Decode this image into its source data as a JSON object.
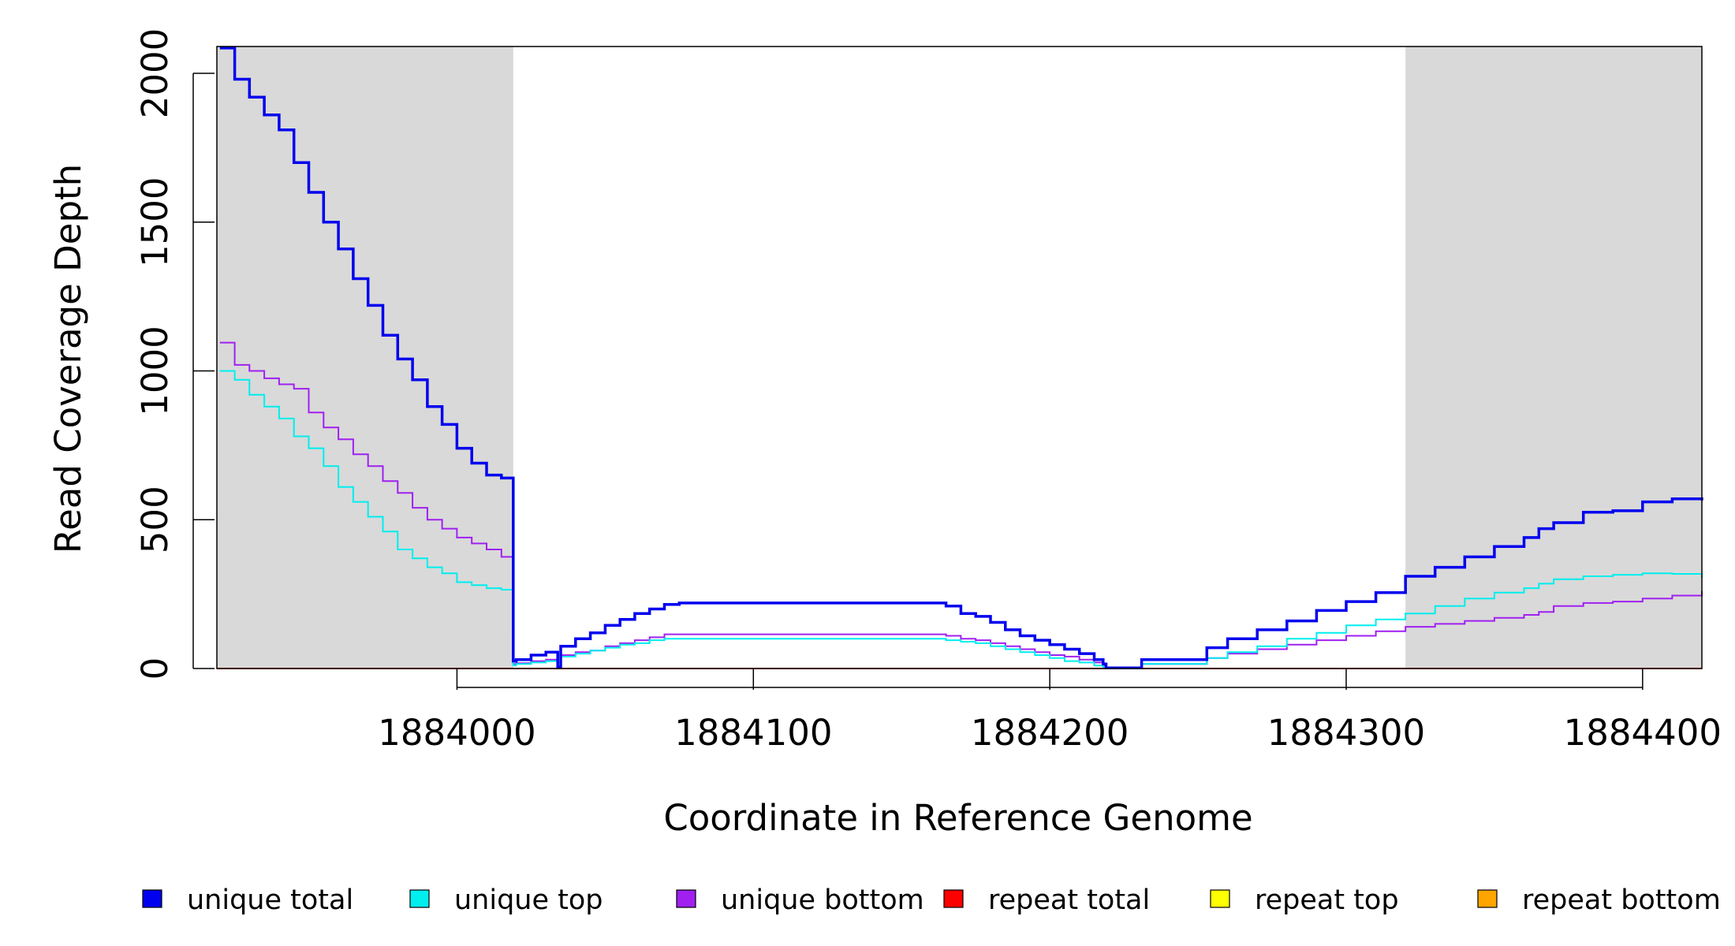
{
  "chart_data": {
    "type": "line",
    "xlabel": "Coordinate in Reference Genome",
    "ylabel": "Read Coverage Depth",
    "xlim": [
      1883919,
      1884420
    ],
    "ylim": [
      0,
      2090
    ],
    "x_ticks": [
      1884000,
      1884100,
      1884200,
      1884300,
      1884400
    ],
    "x_tick_labels": [
      "1884000",
      "1884100",
      "1884200",
      "1884300",
      "1884400"
    ],
    "y_ticks": [
      0,
      500,
      1000,
      1500,
      2000
    ],
    "y_tick_labels": [
      "0",
      "500",
      "1000",
      "1500",
      "2000"
    ],
    "shaded_regions": [
      [
        1883919,
        1884019
      ],
      [
        1884320,
        1884420
      ]
    ],
    "shade_color": "#d9d9d9",
    "grid": false,
    "legend_position": "bottom",
    "series": [
      {
        "name": "unique total",
        "color": "#0000ee",
        "step": true,
        "x": [
          1883920,
          1883925,
          1883930,
          1883935,
          1883940,
          1883945,
          1883950,
          1883955,
          1883960,
          1883965,
          1883970,
          1883975,
          1883980,
          1883985,
          1883990,
          1883995,
          1884000,
          1884005,
          1884010,
          1884015,
          1884018,
          1884019,
          1884020,
          1884025,
          1884030,
          1884034,
          1884035,
          1884040,
          1884045,
          1884050,
          1884055,
          1884060,
          1884065,
          1884070,
          1884075,
          1884080,
          1884100,
          1884120,
          1884140,
          1884160,
          1884165,
          1884170,
          1884175,
          1884180,
          1884185,
          1884190,
          1884195,
          1884200,
          1884205,
          1884210,
          1884215,
          1884218,
          1884219,
          1884225,
          1884230,
          1884231,
          1884240,
          1884252,
          1884253,
          1884260,
          1884270,
          1884280,
          1884290,
          1884300,
          1884310,
          1884320,
          1884330,
          1884340,
          1884350,
          1884360,
          1884365,
          1884370,
          1884380,
          1884390,
          1884400,
          1884410,
          1884420
        ],
        "y": [
          2085,
          1980,
          1920,
          1860,
          1810,
          1700,
          1600,
          1500,
          1410,
          1310,
          1220,
          1120,
          1040,
          970,
          880,
          820,
          740,
          690,
          650,
          640,
          640,
          25,
          30,
          45,
          55,
          5,
          75,
          100,
          120,
          145,
          165,
          185,
          200,
          215,
          220,
          220,
          220,
          220,
          220,
          220,
          210,
          185,
          175,
          155,
          130,
          110,
          95,
          80,
          65,
          50,
          30,
          15,
          2,
          2,
          2,
          30,
          30,
          30,
          70,
          100,
          130,
          160,
          195,
          225,
          255,
          310,
          340,
          375,
          410,
          440,
          470,
          490,
          525,
          530,
          560,
          570,
          565
        ]
      },
      {
        "name": "unique top",
        "color": "#00eeee",
        "step": true,
        "x": [
          1883920,
          1883925,
          1883930,
          1883935,
          1883940,
          1883945,
          1883950,
          1883955,
          1883960,
          1883965,
          1883970,
          1883975,
          1883980,
          1883985,
          1883990,
          1883995,
          1884000,
          1884005,
          1884010,
          1884015,
          1884018,
          1884019,
          1884020,
          1884025,
          1884030,
          1884034,
          1884035,
          1884040,
          1884045,
          1884050,
          1884055,
          1884060,
          1884065,
          1884070,
          1884075,
          1884080,
          1884100,
          1884120,
          1884140,
          1884160,
          1884165,
          1884170,
          1884175,
          1884180,
          1884185,
          1884190,
          1884195,
          1884200,
          1884205,
          1884210,
          1884215,
          1884218,
          1884219,
          1884225,
          1884230,
          1884231,
          1884240,
          1884252,
          1884253,
          1884260,
          1884270,
          1884280,
          1884290,
          1884300,
          1884310,
          1884320,
          1884330,
          1884340,
          1884350,
          1884360,
          1884365,
          1884370,
          1884380,
          1884390,
          1884400,
          1884410,
          1884420
        ],
        "y": [
          1000,
          970,
          920,
          880,
          840,
          780,
          740,
          680,
          610,
          560,
          510,
          460,
          400,
          370,
          340,
          320,
          290,
          280,
          270,
          265,
          265,
          10,
          15,
          20,
          25,
          3,
          40,
          50,
          60,
          70,
          80,
          85,
          95,
          100,
          100,
          100,
          100,
          100,
          100,
          100,
          95,
          90,
          85,
          75,
          65,
          55,
          45,
          35,
          25,
          20,
          10,
          5,
          1,
          1,
          1,
          15,
          15,
          15,
          35,
          55,
          75,
          100,
          120,
          145,
          165,
          185,
          210,
          235,
          255,
          270,
          285,
          300,
          310,
          315,
          320,
          318,
          305
        ]
      },
      {
        "name": "unique bottom",
        "color": "#a020f0",
        "step": true,
        "x": [
          1883920,
          1883925,
          1883930,
          1883935,
          1883940,
          1883945,
          1883950,
          1883955,
          1883960,
          1883965,
          1883970,
          1883975,
          1883980,
          1883985,
          1883990,
          1883995,
          1884000,
          1884005,
          1884010,
          1884015,
          1884018,
          1884019,
          1884020,
          1884025,
          1884030,
          1884034,
          1884035,
          1884040,
          1884045,
          1884050,
          1884055,
          1884060,
          1884065,
          1884070,
          1884075,
          1884080,
          1884100,
          1884120,
          1884140,
          1884160,
          1884165,
          1884170,
          1884175,
          1884180,
          1884185,
          1884190,
          1884195,
          1884200,
          1884205,
          1884210,
          1884215,
          1884218,
          1884219,
          1884225,
          1884230,
          1884231,
          1884240,
          1884252,
          1884253,
          1884260,
          1884270,
          1884280,
          1884290,
          1884300,
          1884310,
          1884320,
          1884330,
          1884340,
          1884350,
          1884360,
          1884365,
          1884370,
          1884380,
          1884390,
          1884400,
          1884410,
          1884420
        ],
        "y": [
          1095,
          1020,
          1000,
          975,
          955,
          940,
          860,
          810,
          770,
          720,
          680,
          630,
          590,
          540,
          500,
          470,
          440,
          420,
          400,
          375,
          375,
          15,
          18,
          25,
          30,
          2,
          45,
          55,
          60,
          75,
          85,
          95,
          105,
          115,
          115,
          115,
          115,
          115,
          115,
          115,
          110,
          100,
          95,
          85,
          75,
          65,
          55,
          45,
          40,
          30,
          20,
          10,
          1,
          1,
          1,
          15,
          15,
          15,
          35,
          50,
          65,
          80,
          95,
          110,
          125,
          140,
          150,
          160,
          170,
          180,
          190,
          210,
          220,
          225,
          235,
          245,
          260
        ]
      },
      {
        "name": "repeat total",
        "color": "#ff0000",
        "x": [
          1883919,
          1884420
        ],
        "y": [
          0,
          0
        ]
      },
      {
        "name": "repeat top",
        "color": "#ffff00",
        "x": [
          1883919,
          1884420
        ],
        "y": [
          0,
          0
        ]
      },
      {
        "name": "repeat bottom",
        "color": "#ffa500",
        "x": [
          1883919,
          1884420
        ],
        "y": [
          0,
          0
        ]
      }
    ]
  }
}
